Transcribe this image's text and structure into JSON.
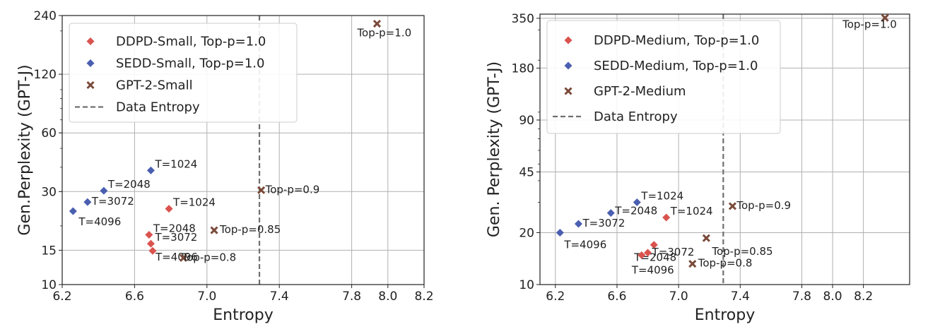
{
  "chart_data": [
    {
      "type": "scatter",
      "xlabel": "Entropy",
      "ylabel": "Gen.Perplexity (GPT-J)",
      "xlim": [
        6.2,
        8.2
      ],
      "ylim": [
        10,
        240
      ],
      "yscale": "log",
      "xticks": [
        6.2,
        6.6,
        7.0,
        7.4,
        7.8,
        8.0,
        8.2
      ],
      "xtick_labels": [
        "6.2",
        "6.6",
        "7.0",
        "7.4",
        "7.8",
        "8.0",
        "8.2"
      ],
      "yticks": [
        10,
        15,
        30,
        60,
        120,
        240
      ],
      "ytick_labels": [
        "10",
        "15",
        "30",
        "60",
        "120",
        "240"
      ],
      "data_entropy": 7.29,
      "legend_position": "top-left",
      "grid": true,
      "series": [
        {
          "name": "DDPD-Small, Top-p=1.0",
          "color": "#d9534f",
          "marker": "diamond",
          "points": [
            {
              "x": 6.79,
              "y": 24.5,
              "label": "T=1024"
            },
            {
              "x": 6.68,
              "y": 18.0,
              "label": "T=2048"
            },
            {
              "x": 6.69,
              "y": 16.2,
              "label": "T=3072"
            },
            {
              "x": 6.7,
              "y": 14.9,
              "label": "T=4096"
            }
          ]
        },
        {
          "name": "SEDD-Small, Top-p=1.0",
          "color": "#4a5fb0",
          "marker": "diamond",
          "points": [
            {
              "x": 6.69,
              "y": 38.5,
              "label": "T=1024"
            },
            {
              "x": 6.43,
              "y": 30.3,
              "label": "T=2048"
            },
            {
              "x": 6.34,
              "y": 26.5,
              "label": "T=3072"
            },
            {
              "x": 6.26,
              "y": 23.8,
              "label": "T=4096"
            }
          ]
        },
        {
          "name": "GPT-2-Small",
          "color": "#7a4a3a",
          "marker": "x",
          "points": [
            {
              "x": 7.94,
              "y": 218,
              "label": "Top-p=1.0"
            },
            {
              "x": 7.3,
              "y": 30.5,
              "label": "Top-p=0.9"
            },
            {
              "x": 7.04,
              "y": 19.0,
              "label": "Top-p=0.85"
            },
            {
              "x": 6.87,
              "y": 13.7,
              "label": "Top-p=0.8"
            }
          ]
        }
      ],
      "legend_line_label": "Data Entropy"
    },
    {
      "type": "scatter",
      "xlabel": "Entropy",
      "ylabel": "Gen. Perplexity (GPT-J)",
      "xlim": [
        6.1,
        8.5
      ],
      "ylim": [
        10,
        370
      ],
      "yscale": "log",
      "xticks": [
        6.2,
        6.6,
        7.0,
        7.4,
        7.8,
        8.0,
        8.2
      ],
      "xtick_labels": [
        "6.2",
        "6.6",
        "7.0",
        "7.4",
        "7.8",
        "8.0",
        "8.2"
      ],
      "yticks": [
        10,
        20,
        45,
        90,
        180,
        350
      ],
      "ytick_labels": [
        "10",
        "20",
        "45",
        "90",
        "180",
        "350"
      ],
      "data_entropy": 7.29,
      "legend_position": "top-left",
      "grid": true,
      "series": [
        {
          "name": "DDPD-Medium, Top-p=1.0",
          "color": "#d9534f",
          "marker": "diamond",
          "points": [
            {
              "x": 6.92,
              "y": 24.5,
              "label": "T=1024"
            },
            {
              "x": 6.84,
              "y": 17.0,
              "label": "T=2048"
            },
            {
              "x": 6.8,
              "y": 15.3,
              "label": "T=3072"
            },
            {
              "x": 6.76,
              "y": 14.8,
              "label": "T=4096"
            }
          ]
        },
        {
          "name": "SEDD-Medium, Top-p=1.0",
          "color": "#4a5fb0",
          "marker": "diamond",
          "points": [
            {
              "x": 6.73,
              "y": 30.0,
              "label": "T=1024"
            },
            {
              "x": 6.56,
              "y": 26.0,
              "label": "T=2048"
            },
            {
              "x": 6.35,
              "y": 22.5,
              "label": "T=3072"
            },
            {
              "x": 6.23,
              "y": 20.0,
              "label": "T=4096"
            }
          ]
        },
        {
          "name": "GPT-2-Medium",
          "color": "#7a4a3a",
          "marker": "x",
          "points": [
            {
              "x": 8.34,
              "y": 352,
              "label": "Top-p=1.0"
            },
            {
              "x": 7.35,
              "y": 28.5,
              "label": "Top-p=0.9"
            },
            {
              "x": 7.18,
              "y": 18.6,
              "label": "Top-p=0.85"
            },
            {
              "x": 7.09,
              "y": 13.2,
              "label": "Top-p=0.8"
            }
          ]
        }
      ],
      "legend_line_label": "Data Entropy"
    }
  ]
}
